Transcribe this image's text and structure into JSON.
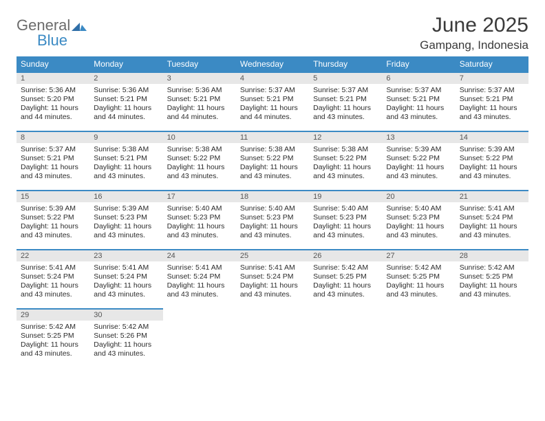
{
  "logo": {
    "word1": "General",
    "word2": "Blue",
    "word1_color": "#6b6b6b",
    "word2_color": "#3b8ac4",
    "mark_color": "#2f6fa8"
  },
  "title": "June 2025",
  "location": "Gampang, Indonesia",
  "style": {
    "header_bg": "#3b8ac4",
    "header_fg": "#ffffff",
    "daynum_bg": "#e7e7e7",
    "daynum_fg": "#555555",
    "row_border": "#3b8ac4",
    "body_fg": "#2b2b2b",
    "page_bg": "#ffffff",
    "title_fontsize": 30,
    "location_fontsize": 17,
    "th_fontsize": 12,
    "cell_fontsize": 10.5
  },
  "weekdays": [
    "Sunday",
    "Monday",
    "Tuesday",
    "Wednesday",
    "Thursday",
    "Friday",
    "Saturday"
  ],
  "weeks": [
    [
      {
        "n": "1",
        "sr": "Sunrise: 5:36 AM",
        "ss": "Sunset: 5:20 PM",
        "d1": "Daylight: 11 hours",
        "d2": "and 44 minutes."
      },
      {
        "n": "2",
        "sr": "Sunrise: 5:36 AM",
        "ss": "Sunset: 5:21 PM",
        "d1": "Daylight: 11 hours",
        "d2": "and 44 minutes."
      },
      {
        "n": "3",
        "sr": "Sunrise: 5:36 AM",
        "ss": "Sunset: 5:21 PM",
        "d1": "Daylight: 11 hours",
        "d2": "and 44 minutes."
      },
      {
        "n": "4",
        "sr": "Sunrise: 5:37 AM",
        "ss": "Sunset: 5:21 PM",
        "d1": "Daylight: 11 hours",
        "d2": "and 44 minutes."
      },
      {
        "n": "5",
        "sr": "Sunrise: 5:37 AM",
        "ss": "Sunset: 5:21 PM",
        "d1": "Daylight: 11 hours",
        "d2": "and 43 minutes."
      },
      {
        "n": "6",
        "sr": "Sunrise: 5:37 AM",
        "ss": "Sunset: 5:21 PM",
        "d1": "Daylight: 11 hours",
        "d2": "and 43 minutes."
      },
      {
        "n": "7",
        "sr": "Sunrise: 5:37 AM",
        "ss": "Sunset: 5:21 PM",
        "d1": "Daylight: 11 hours",
        "d2": "and 43 minutes."
      }
    ],
    [
      {
        "n": "8",
        "sr": "Sunrise: 5:37 AM",
        "ss": "Sunset: 5:21 PM",
        "d1": "Daylight: 11 hours",
        "d2": "and 43 minutes."
      },
      {
        "n": "9",
        "sr": "Sunrise: 5:38 AM",
        "ss": "Sunset: 5:21 PM",
        "d1": "Daylight: 11 hours",
        "d2": "and 43 minutes."
      },
      {
        "n": "10",
        "sr": "Sunrise: 5:38 AM",
        "ss": "Sunset: 5:22 PM",
        "d1": "Daylight: 11 hours",
        "d2": "and 43 minutes."
      },
      {
        "n": "11",
        "sr": "Sunrise: 5:38 AM",
        "ss": "Sunset: 5:22 PM",
        "d1": "Daylight: 11 hours",
        "d2": "and 43 minutes."
      },
      {
        "n": "12",
        "sr": "Sunrise: 5:38 AM",
        "ss": "Sunset: 5:22 PM",
        "d1": "Daylight: 11 hours",
        "d2": "and 43 minutes."
      },
      {
        "n": "13",
        "sr": "Sunrise: 5:39 AM",
        "ss": "Sunset: 5:22 PM",
        "d1": "Daylight: 11 hours",
        "d2": "and 43 minutes."
      },
      {
        "n": "14",
        "sr": "Sunrise: 5:39 AM",
        "ss": "Sunset: 5:22 PM",
        "d1": "Daylight: 11 hours",
        "d2": "and 43 minutes."
      }
    ],
    [
      {
        "n": "15",
        "sr": "Sunrise: 5:39 AM",
        "ss": "Sunset: 5:22 PM",
        "d1": "Daylight: 11 hours",
        "d2": "and 43 minutes."
      },
      {
        "n": "16",
        "sr": "Sunrise: 5:39 AM",
        "ss": "Sunset: 5:23 PM",
        "d1": "Daylight: 11 hours",
        "d2": "and 43 minutes."
      },
      {
        "n": "17",
        "sr": "Sunrise: 5:40 AM",
        "ss": "Sunset: 5:23 PM",
        "d1": "Daylight: 11 hours",
        "d2": "and 43 minutes."
      },
      {
        "n": "18",
        "sr": "Sunrise: 5:40 AM",
        "ss": "Sunset: 5:23 PM",
        "d1": "Daylight: 11 hours",
        "d2": "and 43 minutes."
      },
      {
        "n": "19",
        "sr": "Sunrise: 5:40 AM",
        "ss": "Sunset: 5:23 PM",
        "d1": "Daylight: 11 hours",
        "d2": "and 43 minutes."
      },
      {
        "n": "20",
        "sr": "Sunrise: 5:40 AM",
        "ss": "Sunset: 5:23 PM",
        "d1": "Daylight: 11 hours",
        "d2": "and 43 minutes."
      },
      {
        "n": "21",
        "sr": "Sunrise: 5:41 AM",
        "ss": "Sunset: 5:24 PM",
        "d1": "Daylight: 11 hours",
        "d2": "and 43 minutes."
      }
    ],
    [
      {
        "n": "22",
        "sr": "Sunrise: 5:41 AM",
        "ss": "Sunset: 5:24 PM",
        "d1": "Daylight: 11 hours",
        "d2": "and 43 minutes."
      },
      {
        "n": "23",
        "sr": "Sunrise: 5:41 AM",
        "ss": "Sunset: 5:24 PM",
        "d1": "Daylight: 11 hours",
        "d2": "and 43 minutes."
      },
      {
        "n": "24",
        "sr": "Sunrise: 5:41 AM",
        "ss": "Sunset: 5:24 PM",
        "d1": "Daylight: 11 hours",
        "d2": "and 43 minutes."
      },
      {
        "n": "25",
        "sr": "Sunrise: 5:41 AM",
        "ss": "Sunset: 5:24 PM",
        "d1": "Daylight: 11 hours",
        "d2": "and 43 minutes."
      },
      {
        "n": "26",
        "sr": "Sunrise: 5:42 AM",
        "ss": "Sunset: 5:25 PM",
        "d1": "Daylight: 11 hours",
        "d2": "and 43 minutes."
      },
      {
        "n": "27",
        "sr": "Sunrise: 5:42 AM",
        "ss": "Sunset: 5:25 PM",
        "d1": "Daylight: 11 hours",
        "d2": "and 43 minutes."
      },
      {
        "n": "28",
        "sr": "Sunrise: 5:42 AM",
        "ss": "Sunset: 5:25 PM",
        "d1": "Daylight: 11 hours",
        "d2": "and 43 minutes."
      }
    ],
    [
      {
        "n": "29",
        "sr": "Sunrise: 5:42 AM",
        "ss": "Sunset: 5:25 PM",
        "d1": "Daylight: 11 hours",
        "d2": "and 43 minutes."
      },
      {
        "n": "30",
        "sr": "Sunrise: 5:42 AM",
        "ss": "Sunset: 5:26 PM",
        "d1": "Daylight: 11 hours",
        "d2": "and 43 minutes."
      },
      null,
      null,
      null,
      null,
      null
    ]
  ]
}
